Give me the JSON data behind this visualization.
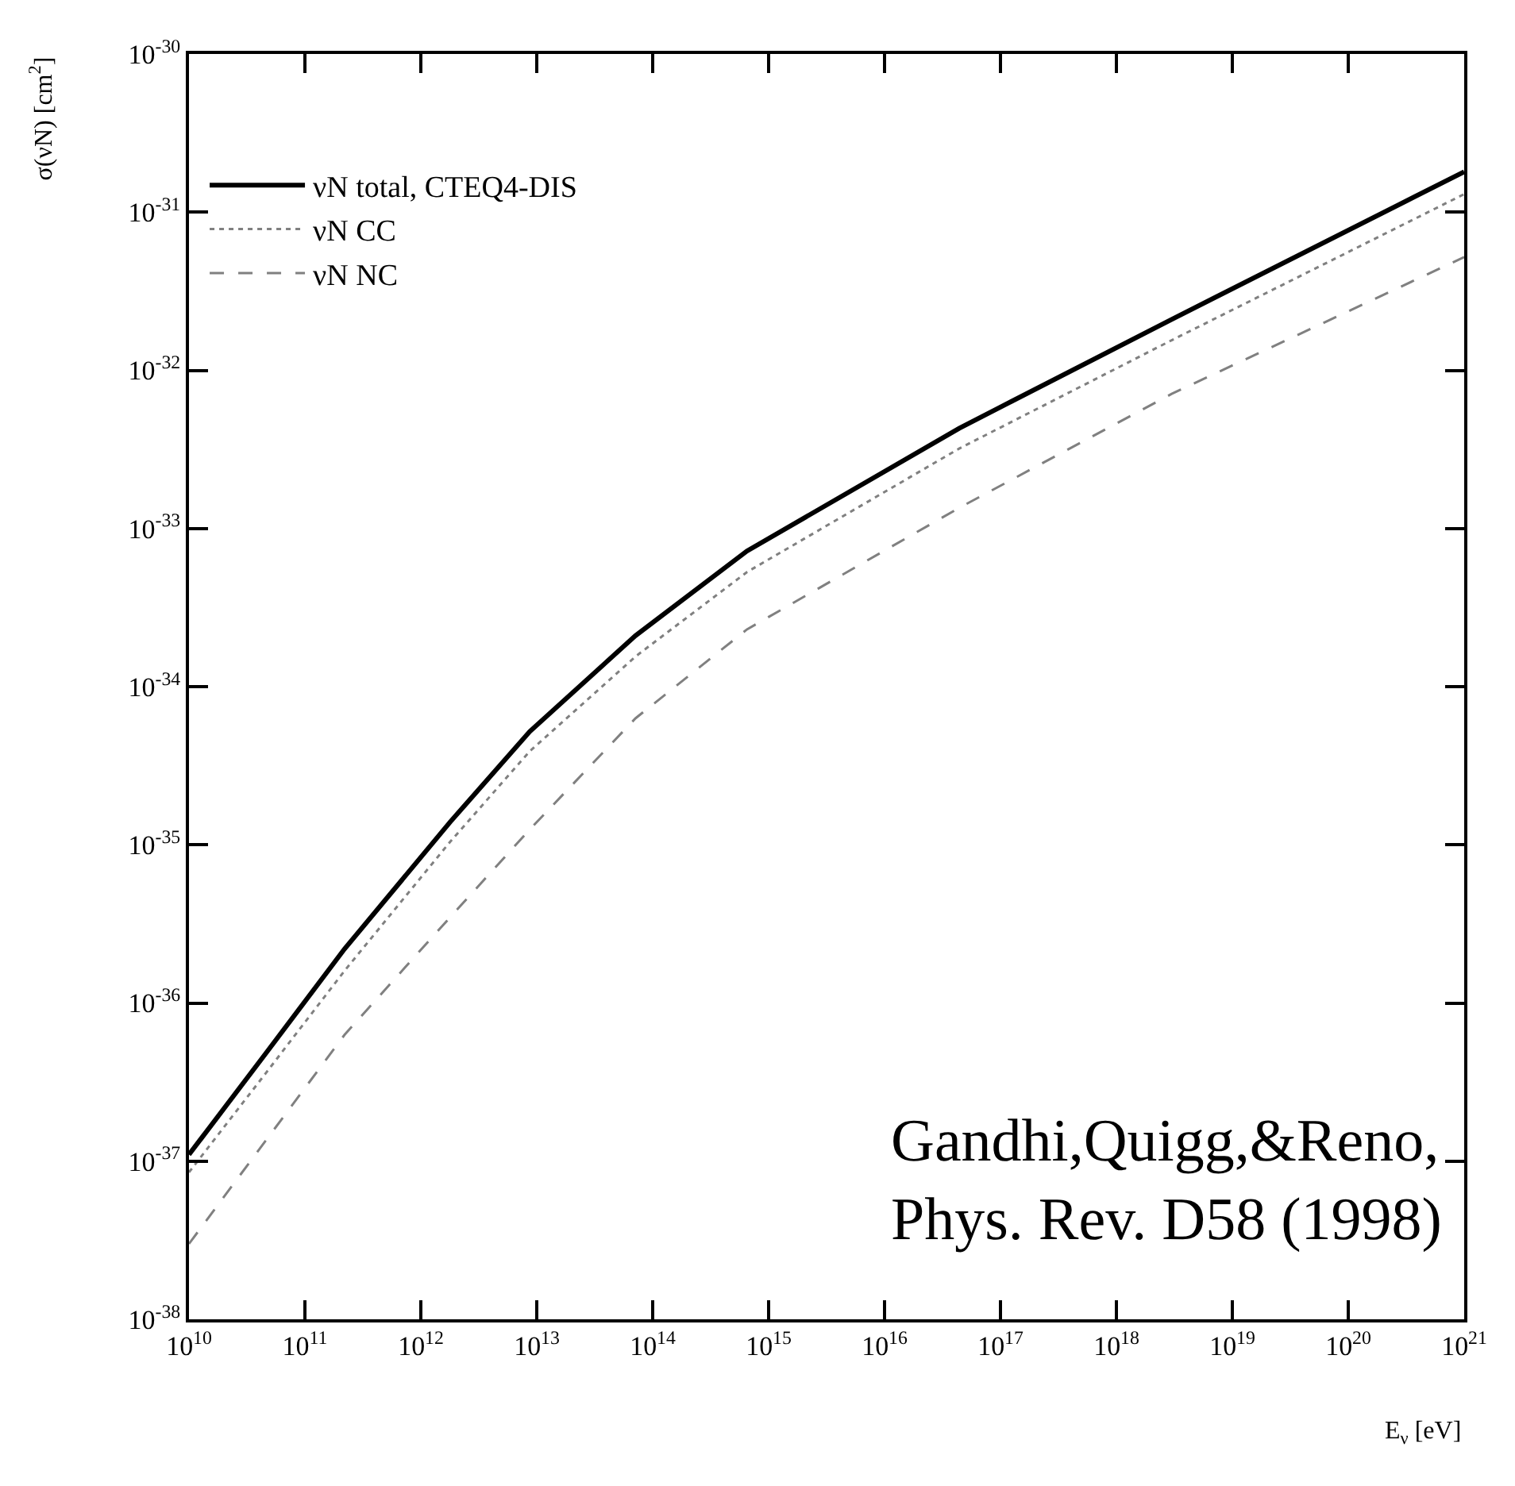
{
  "chart_data": {
    "type": "line",
    "xlabel": "E$_{ν}$ [eV]",
    "ylabel": "σ(νN) [cm$^{2}$]",
    "x": [
      10000000000.0,
      46000000000.0,
      220000000000.0,
      1800000000000.0,
      8700000000000.0,
      71000000000000.0,
      650000000000000.0,
      4.4e+16,
      3e+18,
      1e+21
    ],
    "series": [
      {
        "name": "νN total, CTEQ4-DIS",
        "color": "#000000",
        "line_style": "solid",
        "values": [
          1.1e-37,
          4.8e-37,
          2.2e-36,
          1.4e-35,
          5.2e-35,
          2.1e-34,
          7.2e-34,
          4.3e-33,
          2.1e-32,
          1.8e-31
        ]
      },
      {
        "name": "νN CC",
        "color": "#808080",
        "line_style": "dotted",
        "values": [
          8.5e-38,
          3.6e-37,
          1.6e-36,
          1.05e-35,
          3.9e-35,
          1.55e-34,
          5.3e-34,
          3.2e-33,
          1.55e-32,
          1.3e-31
        ]
      },
      {
        "name": "νN NC",
        "color": "#808080",
        "line_style": "dashed",
        "values": [
          3e-38,
          1.35e-37,
          6.3e-37,
          3.5e-36,
          1.25e-35,
          6.3e-35,
          2.3e-34,
          1.35e-33,
          7.1e-33,
          5.2e-32
        ]
      }
    ],
    "log": "xy",
    "xlim": [
      10000000000.0,
      1e+21
    ],
    "ylim": [
      1e-38,
      1e-30
    ],
    "xticks": [
      {
        "value": 10000000000.0,
        "label": "10$^{10}$"
      },
      {
        "value": 100000000000.0,
        "label": "10$^{11}$"
      },
      {
        "value": 1000000000000.0,
        "label": "10$^{12}$"
      },
      {
        "value": 10000000000000.0,
        "label": "10$^{13}$"
      },
      {
        "value": 100000000000000.0,
        "label": "10$^{14}$"
      },
      {
        "value": 1000000000000000.0,
        "label": "10$^{15}$"
      },
      {
        "value": 1e+16,
        "label": "10$^{16}$"
      },
      {
        "value": 1e+17,
        "label": "10$^{17}$"
      },
      {
        "value": 1e+18,
        "label": "10$^{18}$"
      },
      {
        "value": 1e+19,
        "label": "10$^{19}$"
      },
      {
        "value": 1e+20,
        "label": "10$^{20}$"
      },
      {
        "value": 1e+21,
        "label": "10$^{21}$"
      }
    ],
    "yticks": [
      {
        "value": 1e-38,
        "label": "10$^{-38}$"
      },
      {
        "value": 1e-37,
        "label": "10$^{-37}$"
      },
      {
        "value": 1e-36,
        "label": "10$^{-36}$"
      },
      {
        "value": 1e-35,
        "label": "10$^{-35}$"
      },
      {
        "value": 1e-34,
        "label": "10$^{-34}$"
      },
      {
        "value": 1e-33,
        "label": "10$^{-33}$"
      },
      {
        "value": 1e-32,
        "label": "10$^{-32}$"
      },
      {
        "value": 1e-31,
        "label": "10$^{-31}$"
      },
      {
        "value": 1e-30,
        "label": "10$^{-30}$"
      }
    ],
    "grid": false,
    "legend": "top left",
    "marker": "none",
    "annotations": [
      "Gandhi,Quigg,&Reno,\nPhys. Rev. D58 (1998)"
    ]
  }
}
